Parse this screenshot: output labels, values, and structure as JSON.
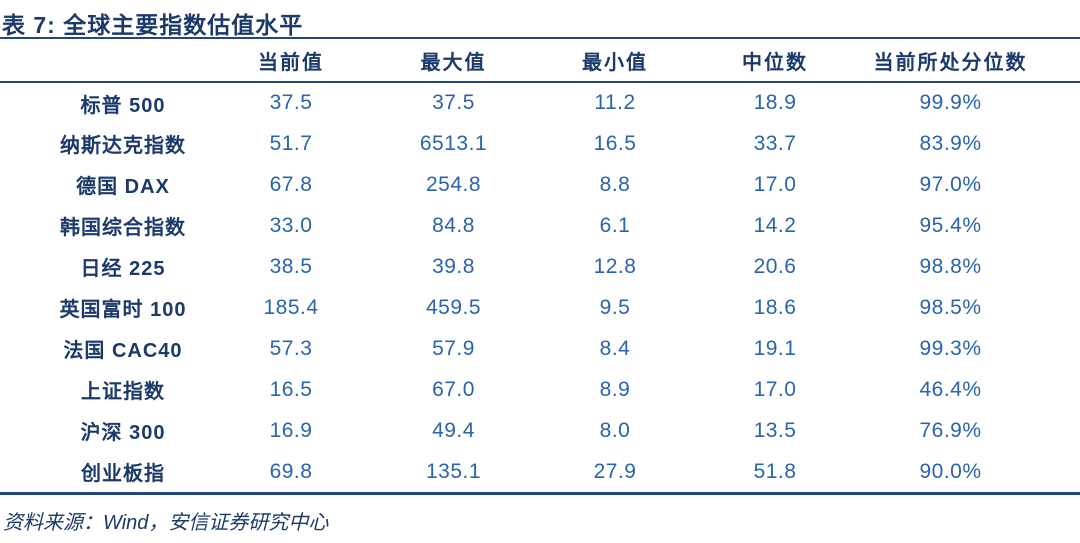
{
  "title": "表 7: 全球主要指数估值水平",
  "table": {
    "columns": [
      "当前值",
      "最大值",
      "最小值",
      "中位数",
      "当前所处分位数"
    ],
    "rows": [
      {
        "label": "标普 500",
        "current": "37.5",
        "max": "37.5",
        "min": "11.2",
        "median": "18.9",
        "percentile": "99.9%"
      },
      {
        "label": "纳斯达克指数",
        "current": "51.7",
        "max": "6513.1",
        "min": "16.5",
        "median": "33.7",
        "percentile": "83.9%"
      },
      {
        "label": "德国 DAX",
        "current": "67.8",
        "max": "254.8",
        "min": "8.8",
        "median": "17.0",
        "percentile": "97.0%"
      },
      {
        "label": "韩国综合指数",
        "current": "33.0",
        "max": "84.8",
        "min": "6.1",
        "median": "14.2",
        "percentile": "95.4%"
      },
      {
        "label": "日经 225",
        "current": "38.5",
        "max": "39.8",
        "min": "12.8",
        "median": "20.6",
        "percentile": "98.8%"
      },
      {
        "label": "英国富时 100",
        "current": "185.4",
        "max": "459.5",
        "min": "9.5",
        "median": "18.6",
        "percentile": "98.5%"
      },
      {
        "label": "法国 CAC40",
        "current": "57.3",
        "max": "57.9",
        "min": "8.4",
        "median": "19.1",
        "percentile": "99.3%"
      },
      {
        "label": "上证指数",
        "current": "16.5",
        "max": "67.0",
        "min": "8.9",
        "median": "17.0",
        "percentile": "46.4%"
      },
      {
        "label": "沪深 300",
        "current": "16.9",
        "max": "49.4",
        "min": "8.0",
        "median": "13.5",
        "percentile": "76.9%"
      },
      {
        "label": "创业板指",
        "current": "69.8",
        "max": "135.1",
        "min": "27.9",
        "median": "51.8",
        "percentile": "90.0%"
      }
    ]
  },
  "footer": {
    "source": "资料来源：Wind，安信证券研究中心"
  },
  "colors": {
    "navy": "#1B3A6B",
    "num_blue": "#2A63AE",
    "rule": "#24467F"
  }
}
